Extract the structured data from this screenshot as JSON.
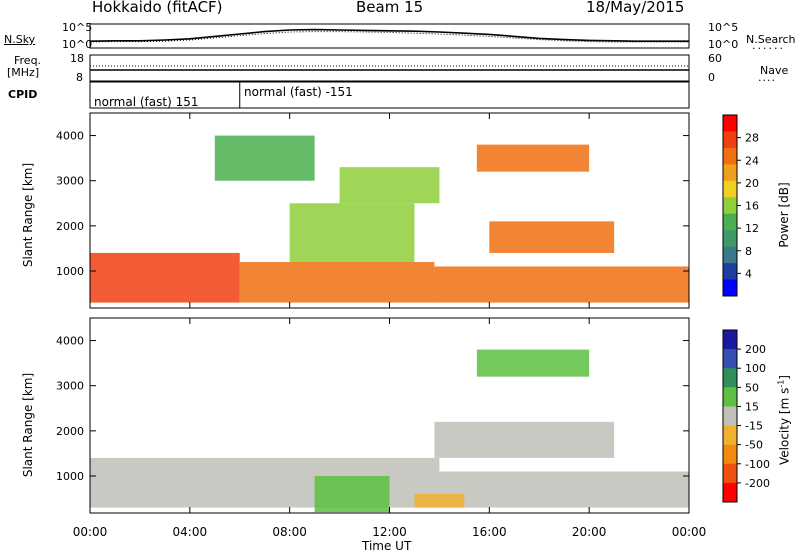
{
  "header": {
    "station": "Hokkaido (fitACF)",
    "beam": "Beam 15",
    "date": "18/May/2015"
  },
  "status_panels": {
    "nsky_label": "N.Sky",
    "nsearch_label": "N.Search",
    "noise_ticks_left": [
      "10^5",
      "10^0"
    ],
    "noise_ticks_right": [
      "10^5",
      "10^0"
    ],
    "freq_label_1": "Freq.",
    "freq_label_2": "[MHz]",
    "freq_ticks": [
      "18",
      "8"
    ],
    "nave_label": "Nave",
    "nave_ticks": [
      "60",
      "0"
    ],
    "cpid_label": "CPID",
    "cpid_entries": [
      {
        "text": "normal (fast) 151",
        "start": "00:00",
        "end": "06:00"
      },
      {
        "text": "normal (fast) -151",
        "start": "06:00",
        "end": "24:00"
      }
    ]
  },
  "colors": {
    "power_scale": [
      "#0000ff",
      "#1f3fa0",
      "#3a7a8a",
      "#3f9a6a",
      "#49b04f",
      "#8fcf3a",
      "#f0d020",
      "#f0a018",
      "#f07010",
      "#f04010",
      "#ff0000"
    ],
    "velocity_scale": [
      "#1a1aa0",
      "#3550b0",
      "#2f8f5a",
      "#5dc040",
      "#c0c0b8",
      "#f0b030",
      "#f08a10",
      "#f05010",
      "#ff0000"
    ]
  },
  "chart_data": [
    {
      "type": "heatmap",
      "title": "",
      "xlabel": "",
      "ylabel": "Slant Range [km]",
      "x_ticks": [
        "00:00",
        "04:00",
        "08:00",
        "12:00",
        "16:00",
        "20:00",
        "00:00"
      ],
      "y_ticks": [
        "1000",
        "2000",
        "3000",
        "4000"
      ],
      "ylim": [
        180,
        4500
      ],
      "xlim": [
        0,
        24
      ],
      "colorbar": {
        "label": "Power [dB]",
        "ticks": [
          "4",
          "8",
          "12",
          "16",
          "20",
          "24",
          "28"
        ],
        "range": [
          0,
          30
        ]
      },
      "regions": [
        {
          "t0": 0.0,
          "t1": 6.0,
          "r0": 300,
          "r1": 1400,
          "level": 26
        },
        {
          "t0": 6.0,
          "t1": 13.8,
          "r0": 300,
          "r1": 1200,
          "level": 24
        },
        {
          "t0": 13.8,
          "t1": 24.0,
          "r0": 300,
          "r1": 1100,
          "level": 24
        },
        {
          "t0": 16.0,
          "t1": 21.0,
          "r0": 1400,
          "r1": 2100,
          "level": 22
        },
        {
          "t0": 15.5,
          "t1": 20.0,
          "r0": 3200,
          "r1": 3800,
          "level": 22
        },
        {
          "t0": 5.0,
          "t1": 9.0,
          "r0": 3000,
          "r1": 4000,
          "level": 12
        },
        {
          "t0": 8.0,
          "t1": 13.0,
          "r0": 1200,
          "r1": 2500,
          "level": 16
        },
        {
          "t0": 10.0,
          "t1": 14.0,
          "r0": 2500,
          "r1": 3300,
          "level": 16
        }
      ]
    },
    {
      "type": "heatmap",
      "title": "",
      "xlabel": "Time UT",
      "ylabel": "Slant Range [km]",
      "x_ticks": [
        "00:00",
        "04:00",
        "08:00",
        "12:00",
        "16:00",
        "20:00",
        "00:00"
      ],
      "y_ticks": [
        "1000",
        "2000",
        "3000",
        "4000"
      ],
      "ylim": [
        180,
        4500
      ],
      "xlim": [
        0,
        24
      ],
      "colorbar": {
        "label": "Velocity [m s-1]",
        "ticks": [
          "200",
          "100",
          "50",
          "15",
          "-15",
          "-50",
          "-100",
          "-200"
        ],
        "range": [
          -250,
          250
        ]
      },
      "regions": [
        {
          "t0": 0.0,
          "t1": 14.0,
          "r0": 300,
          "r1": 1400,
          "level": 0
        },
        {
          "t0": 14.0,
          "t1": 24.0,
          "r0": 300,
          "r1": 1100,
          "level": 0
        },
        {
          "t0": 15.5,
          "t1": 20.0,
          "r0": 3200,
          "r1": 3800,
          "level": 40
        },
        {
          "t0": 13.8,
          "t1": 21.0,
          "r0": 1400,
          "r1": 2200,
          "level": 0
        },
        {
          "t0": 9.0,
          "t1": 12.0,
          "r0": 200,
          "r1": 1000,
          "level": 40
        },
        {
          "t0": 13.0,
          "t1": 15.0,
          "r0": 300,
          "r1": 600,
          "level": -60
        }
      ]
    }
  ],
  "noise_series": {
    "n_sky": [
      1.2,
      1.3,
      1.3,
      1.5,
      1.8,
      2.4,
      3.0,
      3.6,
      4.0,
      4.1,
      4.0,
      3.9,
      3.8,
      3.7,
      3.5,
      3.2,
      2.9,
      2.4,
      1.9,
      1.6,
      1.4,
      1.3,
      1.2,
      1.2,
      1.2
    ],
    "n_search": [
      1.0,
      1.1,
      1.1,
      1.2,
      1.5,
      2.0,
      2.6,
      3.1,
      3.5,
      3.6,
      3.6,
      3.5,
      3.4,
      3.2,
      3.0,
      2.7,
      2.4,
      2.0,
      1.6,
      1.3,
      1.1,
      1.0,
      1.0,
      1.0,
      1.0
    ]
  }
}
